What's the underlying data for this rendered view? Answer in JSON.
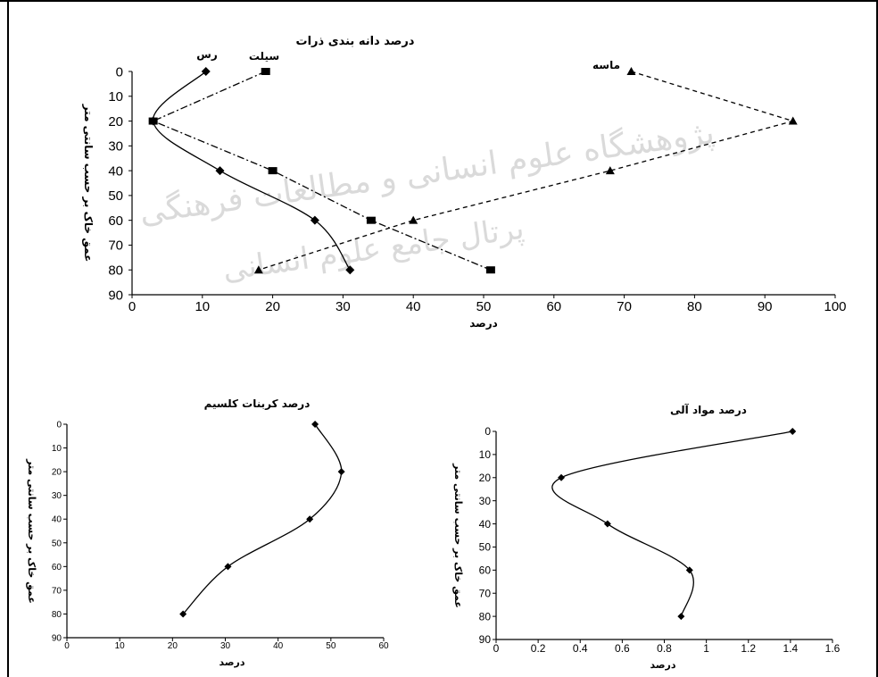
{
  "watermark": {
    "line1": "پژوهشگاه علوم انسانی و مطالعات فرهنگی",
    "line2": "پرتال جامع علوم انسانی"
  },
  "chart_data": [
    {
      "type": "line",
      "title": "درصد دانه بندی ذرات",
      "xlabel": "درصد",
      "ylabel": "عمق خاک بر حسب سانتی متر",
      "xlim": [
        0,
        100
      ],
      "ylim": [
        0,
        90
      ],
      "y_inverted": true,
      "xticks": [
        0,
        10,
        20,
        30,
        40,
        50,
        60,
        70,
        80,
        90,
        100
      ],
      "yticks": [
        0,
        10,
        20,
        30,
        40,
        50,
        60,
        70,
        80,
        90
      ],
      "series": [
        {
          "name": "رس",
          "color": "#000000",
          "line_style": "solid",
          "marker": "diamond",
          "x": [
            10.5,
            3,
            12.5,
            26,
            31
          ],
          "y": [
            0,
            20,
            40,
            60,
            80
          ]
        },
        {
          "name": "سیلت",
          "color": "#000000",
          "line_style": "dashdot",
          "marker": "square",
          "x": [
            19,
            3,
            20,
            34,
            51
          ],
          "y": [
            0,
            20,
            40,
            60,
            80
          ]
        },
        {
          "name": "ماسه",
          "color": "#000000",
          "line_style": "dashed",
          "marker": "triangle",
          "x": [
            71,
            94,
            68,
            40,
            18
          ],
          "y": [
            0,
            20,
            40,
            60,
            80
          ]
        }
      ]
    },
    {
      "type": "line",
      "title": "درصد کربنات کلسیم",
      "xlabel": "درصد",
      "ylabel": "عمق خاک بر حسب سانتی متر",
      "xlim": [
        0,
        60
      ],
      "ylim": [
        0,
        90
      ],
      "y_inverted": true,
      "xticks": [
        0,
        10,
        20,
        30,
        40,
        50,
        60
      ],
      "yticks": [
        0,
        10,
        20,
        30,
        40,
        50,
        60,
        70,
        80,
        90
      ],
      "series": [
        {
          "color": "#000000",
          "line_style": "solid",
          "marker": "diamond",
          "x": [
            47,
            52,
            46,
            30.5,
            22
          ],
          "y": [
            0,
            20,
            40,
            60,
            80
          ]
        }
      ]
    },
    {
      "type": "line",
      "title": "درصد مواد آلی",
      "xlabel": "درصد",
      "ylabel": "عمق خاک بر حسب سانتی متر",
      "xlim": [
        0,
        1.6
      ],
      "ylim": [
        0,
        90
      ],
      "y_inverted": true,
      "xticks": [
        0,
        0.2,
        0.4,
        0.6,
        0.8,
        1,
        1.2,
        1.4,
        1.6
      ],
      "yticks": [
        0,
        10,
        20,
        30,
        40,
        50,
        60,
        70,
        80,
        90
      ],
      "series": [
        {
          "color": "#000000",
          "line_style": "solid",
          "marker": "diamond",
          "x": [
            1.41,
            0.31,
            0.53,
            0.92,
            0.88
          ],
          "y": [
            0,
            20,
            40,
            60,
            80
          ]
        }
      ]
    }
  ]
}
